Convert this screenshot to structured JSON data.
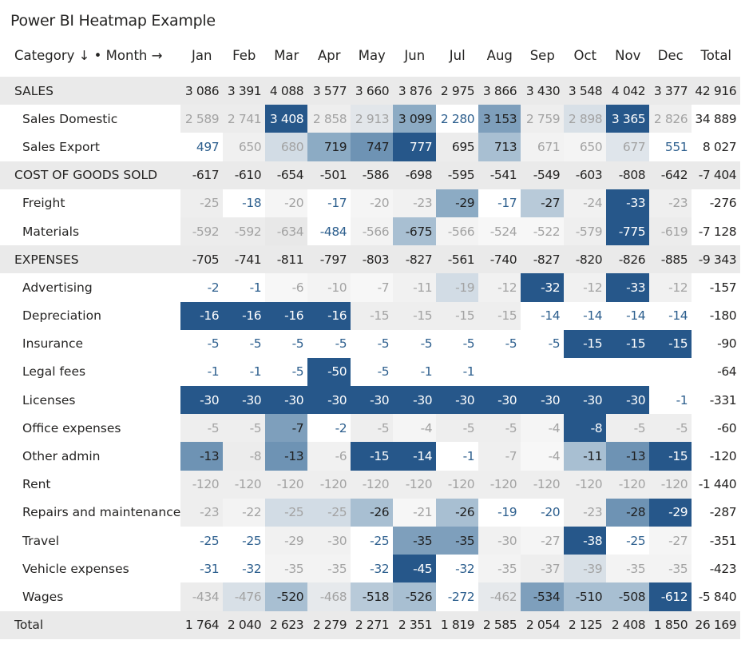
{
  "title": "Power BI Heatmap Example",
  "header": {
    "corner": "Category ↓ • Month →",
    "months": [
      "Jan",
      "Feb",
      "Mar",
      "Apr",
      "May",
      "Jun",
      "Jul",
      "Aug",
      "Sep",
      "Oct",
      "Nov",
      "Dec"
    ],
    "total": "Total"
  },
  "rows": [
    {
      "name": "SALES",
      "type": "group",
      "values": [
        "3 086",
        "3 391",
        "4 088",
        "3 577",
        "3 660",
        "3 876",
        "2 975",
        "3 866",
        "3 430",
        "3 548",
        "4 042",
        "3 377"
      ],
      "total": "42 916"
    },
    {
      "name": "Sales Domestic",
      "type": "sub",
      "values": [
        "2 589",
        "2 741",
        "3 408",
        "2 858",
        "2 913",
        "3 099",
        "2 280",
        "3 153",
        "2 759",
        "2 898",
        "3 365",
        "2 826"
      ],
      "total": "34 889",
      "bg": [
        "#ececec",
        "#ececec",
        "#26578a",
        "#eeeeee",
        "#e2e6ea",
        "#8cabc4",
        "#ffffff",
        "#7e9fbc",
        "#eeeeee",
        "#d8e0e7",
        "#26578a",
        "#efefef"
      ],
      "fg": [
        "#a3a3a3",
        "#a3a3a3",
        "#ffffff",
        "#a3a3a3",
        "#a3a3a3",
        "#1f1f1f",
        "#2d5f8e",
        "#1f1f1f",
        "#a3a3a3",
        "#a3a3a3",
        "#ffffff",
        "#a3a3a3"
      ]
    },
    {
      "name": "Sales Export",
      "type": "sub",
      "values": [
        "497",
        "650",
        "680",
        "719",
        "747",
        "777",
        "695",
        "713",
        "671",
        "650",
        "677",
        "551"
      ],
      "total": "8 027",
      "bg": [
        "#ffffff",
        "#f0f0f0",
        "#d2dce5",
        "#8cabc4",
        "#6e93b4",
        "#26578a",
        "#ececec",
        "#a8bfd2",
        "#f2f2f2",
        "#f4f4f4",
        "#dfe5eb",
        "#ffffff"
      ],
      "fg": [
        "#2d5f8e",
        "#a3a3a3",
        "#a3a3a3",
        "#1f1f1f",
        "#1f1f1f",
        "#ffffff",
        "#1f1f1f",
        "#1f1f1f",
        "#a3a3a3",
        "#a3a3a3",
        "#a3a3a3",
        "#2d5f8e"
      ]
    },
    {
      "name": "COST OF GOODS SOLD",
      "type": "group",
      "values": [
        "-617",
        "-610",
        "-654",
        "-501",
        "-586",
        "-698",
        "-595",
        "-541",
        "-549",
        "-603",
        "-808",
        "-642"
      ],
      "total": "-7 404"
    },
    {
      "name": "Freight",
      "type": "sub",
      "values": [
        "-25",
        "-18",
        "-20",
        "-17",
        "-20",
        "-23",
        "-29",
        "-17",
        "-27",
        "-24",
        "-33",
        "-23"
      ],
      "total": "-276",
      "bg": [
        "#eeeeee",
        "#ffffff",
        "#f5f5f5",
        "#ffffff",
        "#f5f5f5",
        "#f1f1f1",
        "#8cabc4",
        "#ffffff",
        "#b8cad9",
        "#f1f1f1",
        "#26578a",
        "#efefef"
      ],
      "fg": [
        "#a3a3a3",
        "#2d5f8e",
        "#a3a3a3",
        "#2d5f8e",
        "#a3a3a3",
        "#a3a3a3",
        "#1f1f1f",
        "#2d5f8e",
        "#1f1f1f",
        "#a3a3a3",
        "#ffffff",
        "#a3a3a3"
      ]
    },
    {
      "name": "Materials",
      "type": "sub",
      "values": [
        "-592",
        "-592",
        "-634",
        "-484",
        "-566",
        "-675",
        "-566",
        "-524",
        "-522",
        "-579",
        "-775",
        "-619"
      ],
      "total": "-7 128",
      "bg": [
        "#ececec",
        "#ececec",
        "#e8e8e8",
        "#ffffff",
        "#f3f3f3",
        "#a8bfd2",
        "#f3f3f3",
        "#f7f7f7",
        "#f7f7f7",
        "#efefef",
        "#26578a",
        "#ececec"
      ],
      "fg": [
        "#a3a3a3",
        "#a3a3a3",
        "#a3a3a3",
        "#2d5f8e",
        "#a3a3a3",
        "#1f1f1f",
        "#a3a3a3",
        "#a3a3a3",
        "#a3a3a3",
        "#a3a3a3",
        "#ffffff",
        "#a3a3a3"
      ]
    },
    {
      "name": "EXPENSES",
      "type": "group",
      "values": [
        "-705",
        "-741",
        "-811",
        "-797",
        "-803",
        "-827",
        "-561",
        "-740",
        "-827",
        "-820",
        "-826",
        "-885"
      ],
      "total": "-9 343"
    },
    {
      "name": "Advertising",
      "type": "sub",
      "values": [
        "-2",
        "-1",
        "-6",
        "-10",
        "-7",
        "-11",
        "-19",
        "-12",
        "-32",
        "-12",
        "-33",
        "-12"
      ],
      "total": "-157",
      "bg": [
        "#ffffff",
        "#ffffff",
        "#f7f7f7",
        "#f3f3f3",
        "#f7f7f7",
        "#f1f1f1",
        "#d2dce5",
        "#f1f1f1",
        "#26578a",
        "#f1f1f1",
        "#26578a",
        "#f1f1f1"
      ],
      "fg": [
        "#2d5f8e",
        "#2d5f8e",
        "#a3a3a3",
        "#a3a3a3",
        "#a3a3a3",
        "#a3a3a3",
        "#a3a3a3",
        "#a3a3a3",
        "#ffffff",
        "#a3a3a3",
        "#ffffff",
        "#a3a3a3"
      ]
    },
    {
      "name": "Depreciation",
      "type": "sub",
      "values": [
        "-16",
        "-16",
        "-16",
        "-16",
        "-15",
        "-15",
        "-15",
        "-15",
        "-14",
        "-14",
        "-14",
        "-14"
      ],
      "total": "-180",
      "bg": [
        "#26578a",
        "#26578a",
        "#26578a",
        "#26578a",
        "#eeeeee",
        "#eeeeee",
        "#eeeeee",
        "#eeeeee",
        "#ffffff",
        "#ffffff",
        "#ffffff",
        "#ffffff"
      ],
      "fg": [
        "#ffffff",
        "#ffffff",
        "#ffffff",
        "#ffffff",
        "#a3a3a3",
        "#a3a3a3",
        "#a3a3a3",
        "#a3a3a3",
        "#2d5f8e",
        "#2d5f8e",
        "#2d5f8e",
        "#2d5f8e"
      ]
    },
    {
      "name": "Insurance",
      "type": "sub",
      "values": [
        "-5",
        "-5",
        "-5",
        "-5",
        "-5",
        "-5",
        "-5",
        "-5",
        "-5",
        "-15",
        "-15",
        "-15"
      ],
      "total": "-90",
      "bg": [
        "#ffffff",
        "#ffffff",
        "#ffffff",
        "#ffffff",
        "#ffffff",
        "#ffffff",
        "#ffffff",
        "#ffffff",
        "#ffffff",
        "#26578a",
        "#26578a",
        "#26578a"
      ],
      "fg": [
        "#2d5f8e",
        "#2d5f8e",
        "#2d5f8e",
        "#2d5f8e",
        "#2d5f8e",
        "#2d5f8e",
        "#2d5f8e",
        "#2d5f8e",
        "#2d5f8e",
        "#ffffff",
        "#ffffff",
        "#ffffff"
      ]
    },
    {
      "name": "Legal fees",
      "type": "sub",
      "values": [
        "-1",
        "-1",
        "-5",
        "-50",
        "-5",
        "-1",
        "-1",
        "",
        "",
        "",
        "",
        ""
      ],
      "total": "-64",
      "bg": [
        "#ffffff",
        "#ffffff",
        "#ffffff",
        "#26578a",
        "#ffffff",
        "#ffffff",
        "#ffffff",
        "#ffffff",
        "#ffffff",
        "#ffffff",
        "#ffffff",
        "#ffffff"
      ],
      "fg": [
        "#2d5f8e",
        "#2d5f8e",
        "#2d5f8e",
        "#ffffff",
        "#2d5f8e",
        "#2d5f8e",
        "#2d5f8e",
        "#2d5f8e",
        "#2d5f8e",
        "#2d5f8e",
        "#2d5f8e",
        "#2d5f8e"
      ]
    },
    {
      "name": "Licenses",
      "type": "sub",
      "values": [
        "-30",
        "-30",
        "-30",
        "-30",
        "-30",
        "-30",
        "-30",
        "-30",
        "-30",
        "-30",
        "-30",
        "-1"
      ],
      "total": "-331",
      "bg": [
        "#26578a",
        "#26578a",
        "#26578a",
        "#26578a",
        "#26578a",
        "#26578a",
        "#26578a",
        "#26578a",
        "#26578a",
        "#26578a",
        "#26578a",
        "#ffffff"
      ],
      "fg": [
        "#ffffff",
        "#ffffff",
        "#ffffff",
        "#ffffff",
        "#ffffff",
        "#ffffff",
        "#ffffff",
        "#ffffff",
        "#ffffff",
        "#ffffff",
        "#ffffff",
        "#2d5f8e"
      ]
    },
    {
      "name": "Office expenses",
      "type": "sub",
      "values": [
        "-5",
        "-5",
        "-7",
        "-2",
        "-5",
        "-4",
        "-5",
        "-5",
        "-4",
        "-8",
        "-5",
        "-5"
      ],
      "total": "-60",
      "bg": [
        "#eeeeee",
        "#eeeeee",
        "#7e9fbc",
        "#ffffff",
        "#eeeeee",
        "#f5f5f5",
        "#eeeeee",
        "#eeeeee",
        "#f5f5f5",
        "#26578a",
        "#eeeeee",
        "#eeeeee"
      ],
      "fg": [
        "#a3a3a3",
        "#a3a3a3",
        "#1f1f1f",
        "#2d5f8e",
        "#a3a3a3",
        "#a3a3a3",
        "#a3a3a3",
        "#a3a3a3",
        "#a3a3a3",
        "#ffffff",
        "#a3a3a3",
        "#a3a3a3"
      ]
    },
    {
      "name": "Other admin",
      "type": "sub",
      "values": [
        "-13",
        "-8",
        "-13",
        "-6",
        "-15",
        "-14",
        "-1",
        "-7",
        "-4",
        "-11",
        "-13",
        "-15"
      ],
      "total": "-120",
      "bg": [
        "#6e93b4",
        "#ececec",
        "#6e93b4",
        "#f1f1f1",
        "#26578a",
        "#26578a",
        "#ffffff",
        "#efefef",
        "#f7f7f7",
        "#a8bfd2",
        "#6e93b4",
        "#26578a"
      ],
      "fg": [
        "#1f1f1f",
        "#a3a3a3",
        "#1f1f1f",
        "#a3a3a3",
        "#ffffff",
        "#ffffff",
        "#2d5f8e",
        "#a3a3a3",
        "#a3a3a3",
        "#1f1f1f",
        "#1f1f1f",
        "#ffffff"
      ]
    },
    {
      "name": "Rent",
      "type": "sub",
      "values": [
        "-120",
        "-120",
        "-120",
        "-120",
        "-120",
        "-120",
        "-120",
        "-120",
        "-120",
        "-120",
        "-120",
        "-120"
      ],
      "total": "-1 440",
      "bg": [
        "#eeeeee",
        "#eeeeee",
        "#eeeeee",
        "#eeeeee",
        "#eeeeee",
        "#eeeeee",
        "#eeeeee",
        "#eeeeee",
        "#eeeeee",
        "#eeeeee",
        "#eeeeee",
        "#eeeeee"
      ],
      "fg": [
        "#a3a3a3",
        "#a3a3a3",
        "#a3a3a3",
        "#a3a3a3",
        "#a3a3a3",
        "#a3a3a3",
        "#a3a3a3",
        "#a3a3a3",
        "#a3a3a3",
        "#a3a3a3",
        "#a3a3a3",
        "#a3a3a3"
      ]
    },
    {
      "name": "Repairs and maintenance",
      "type": "sub",
      "values": [
        "-23",
        "-22",
        "-25",
        "-25",
        "-26",
        "-21",
        "-26",
        "-19",
        "-20",
        "-23",
        "-28",
        "-29"
      ],
      "total": "-287",
      "bg": [
        "#eeeeee",
        "#f3f3f3",
        "#d2dce5",
        "#d2dce5",
        "#a8bfd2",
        "#f6f6f6",
        "#a8bfd2",
        "#ffffff",
        "#ffffff",
        "#eeeeee",
        "#6e93b4",
        "#26578a"
      ],
      "fg": [
        "#a3a3a3",
        "#a3a3a3",
        "#a3a3a3",
        "#a3a3a3",
        "#1f1f1f",
        "#a3a3a3",
        "#1f1f1f",
        "#2d5f8e",
        "#2d5f8e",
        "#a3a3a3",
        "#1f1f1f",
        "#ffffff"
      ]
    },
    {
      "name": "Travel",
      "type": "sub",
      "values": [
        "-25",
        "-25",
        "-29",
        "-30",
        "-25",
        "-35",
        "-35",
        "-30",
        "-27",
        "-38",
        "-25",
        "-27"
      ],
      "total": "-351",
      "bg": [
        "#ffffff",
        "#ffffff",
        "#f1f1f1",
        "#f1f1f1",
        "#ffffff",
        "#7e9fbc",
        "#7e9fbc",
        "#f1f1f1",
        "#f5f5f5",
        "#26578a",
        "#ffffff",
        "#f5f5f5"
      ],
      "fg": [
        "#2d5f8e",
        "#2d5f8e",
        "#a3a3a3",
        "#a3a3a3",
        "#2d5f8e",
        "#1f1f1f",
        "#1f1f1f",
        "#a3a3a3",
        "#a3a3a3",
        "#ffffff",
        "#2d5f8e",
        "#a3a3a3"
      ]
    },
    {
      "name": "Vehicle expenses",
      "type": "sub",
      "values": [
        "-31",
        "-32",
        "-35",
        "-35",
        "-32",
        "-45",
        "-32",
        "-35",
        "-37",
        "-39",
        "-35",
        "-35"
      ],
      "total": "-423",
      "bg": [
        "#ffffff",
        "#ffffff",
        "#f3f3f3",
        "#f3f3f3",
        "#ffffff",
        "#26578a",
        "#ffffff",
        "#f3f3f3",
        "#eeeeee",
        "#d8e0e7",
        "#f3f3f3",
        "#f3f3f3"
      ],
      "fg": [
        "#2d5f8e",
        "#2d5f8e",
        "#a3a3a3",
        "#a3a3a3",
        "#2d5f8e",
        "#ffffff",
        "#2d5f8e",
        "#a3a3a3",
        "#a3a3a3",
        "#a3a3a3",
        "#a3a3a3",
        "#a3a3a3"
      ]
    },
    {
      "name": "Wages",
      "type": "sub",
      "values": [
        "-434",
        "-476",
        "-520",
        "-468",
        "-518",
        "-526",
        "-272",
        "-462",
        "-534",
        "-510",
        "-508",
        "-612"
      ],
      "total": "-5 840",
      "bg": [
        "#ececec",
        "#d8e0e7",
        "#a8bfd2",
        "#e6e9ec",
        "#b8cad9",
        "#a8bfd2",
        "#ffffff",
        "#e6e9ec",
        "#7e9fbc",
        "#a8bfd2",
        "#a8bfd2",
        "#26578a"
      ],
      "fg": [
        "#a3a3a3",
        "#a3a3a3",
        "#1f1f1f",
        "#a3a3a3",
        "#1f1f1f",
        "#1f1f1f",
        "#2d5f8e",
        "#a3a3a3",
        "#1f1f1f",
        "#1f1f1f",
        "#1f1f1f",
        "#ffffff"
      ]
    },
    {
      "name": "Total",
      "type": "total",
      "values": [
        "1 764",
        "2 040",
        "2 623",
        "2 279",
        "2 271",
        "2 351",
        "1 819",
        "2 585",
        "2 054",
        "2 125",
        "2 408",
        "1 850"
      ],
      "total": "26 169"
    }
  ]
}
